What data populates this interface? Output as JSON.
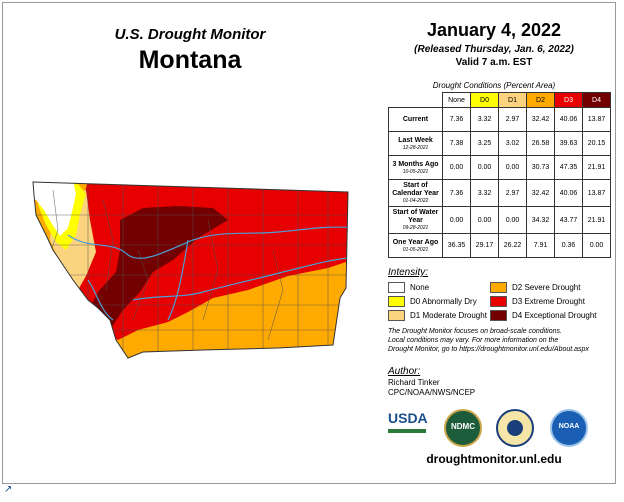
{
  "header": {
    "title_small": "U.S. Drought Monitor",
    "title_large": "Montana",
    "date": "January 4, 2022",
    "released": "(Released Thursday, Jan. 6, 2022)",
    "valid": "Valid 7 a.m. EST"
  },
  "table": {
    "caption": "Drought Conditions (Percent Area)",
    "columns": [
      {
        "label": "None",
        "bg": "#ffffff",
        "fg": "#000000"
      },
      {
        "label": "D0",
        "bg": "#ffff00",
        "fg": "#000000"
      },
      {
        "label": "D1",
        "bg": "#fcd37f",
        "fg": "#000000"
      },
      {
        "label": "D2",
        "bg": "#ffaa00",
        "fg": "#000000"
      },
      {
        "label": "D3",
        "bg": "#e60000",
        "fg": "#ffffff"
      },
      {
        "label": "D4",
        "bg": "#730000",
        "fg": "#ffffff"
      }
    ],
    "rows": [
      {
        "label": "Current",
        "sub": "",
        "values": [
          "7.36",
          "3.32",
          "2.97",
          "32.42",
          "40.06",
          "13.87"
        ]
      },
      {
        "label": "Last Week",
        "sub": "12-28-2021",
        "values": [
          "7.38",
          "3.25",
          "3.02",
          "26.58",
          "39.63",
          "20.15"
        ]
      },
      {
        "label": "3 Months Ago",
        "sub": "10-05-2021",
        "values": [
          "0.00",
          "0.00",
          "0.00",
          "30.73",
          "47.35",
          "21.91"
        ]
      },
      {
        "label": "Start of Calendar Year",
        "sub": "01-04-2022",
        "values": [
          "7.36",
          "3.32",
          "2.97",
          "32.42",
          "40.06",
          "13.87"
        ]
      },
      {
        "label": "Start of Water Year",
        "sub": "09-28-2021",
        "values": [
          "0.00",
          "0.00",
          "0.00",
          "34.32",
          "43.77",
          "21.91"
        ]
      },
      {
        "label": "One Year Ago",
        "sub": "01-05-2021",
        "values": [
          "36.35",
          "29.17",
          "26.22",
          "7.91",
          "0.36",
          "0.00"
        ]
      }
    ]
  },
  "legend": {
    "heading": "Intensity:",
    "items": [
      {
        "label": "None",
        "color": "#ffffff"
      },
      {
        "label": "D2 Severe Drought",
        "color": "#ffaa00"
      },
      {
        "label": "D0 Abnormally Dry",
        "color": "#ffff00"
      },
      {
        "label": "D3 Extreme Drought",
        "color": "#e60000"
      },
      {
        "label": "D1 Moderate Drought",
        "color": "#fcd37f"
      },
      {
        "label": "D4 Exceptional Drought",
        "color": "#730000"
      }
    ]
  },
  "note": {
    "line1": "The Drought Monitor focuses on broad-scale conditions.",
    "line2": "Local conditions may vary. For more information on the",
    "line3": "Drought Monitor, go to https://droughtmonitor.unl.edu/About.aspx"
  },
  "author": {
    "heading": "Author:",
    "name": "Richard Tinker",
    "org": "CPC/NOAA/NWS/NCEP"
  },
  "logos": {
    "usda": "USDA",
    "ndmc": "NDMC",
    "noaa": "NOAA"
  },
  "site": "droughtmonitor.unl.edu",
  "map_colors": {
    "none": "#ffffff",
    "d0": "#ffff00",
    "d1": "#fcd37f",
    "d2": "#ffaa00",
    "d3": "#e60000",
    "d4": "#730000",
    "rivers": "#4a9fd6",
    "borders": "#555555"
  },
  "corner_icon": "external-link-icon"
}
